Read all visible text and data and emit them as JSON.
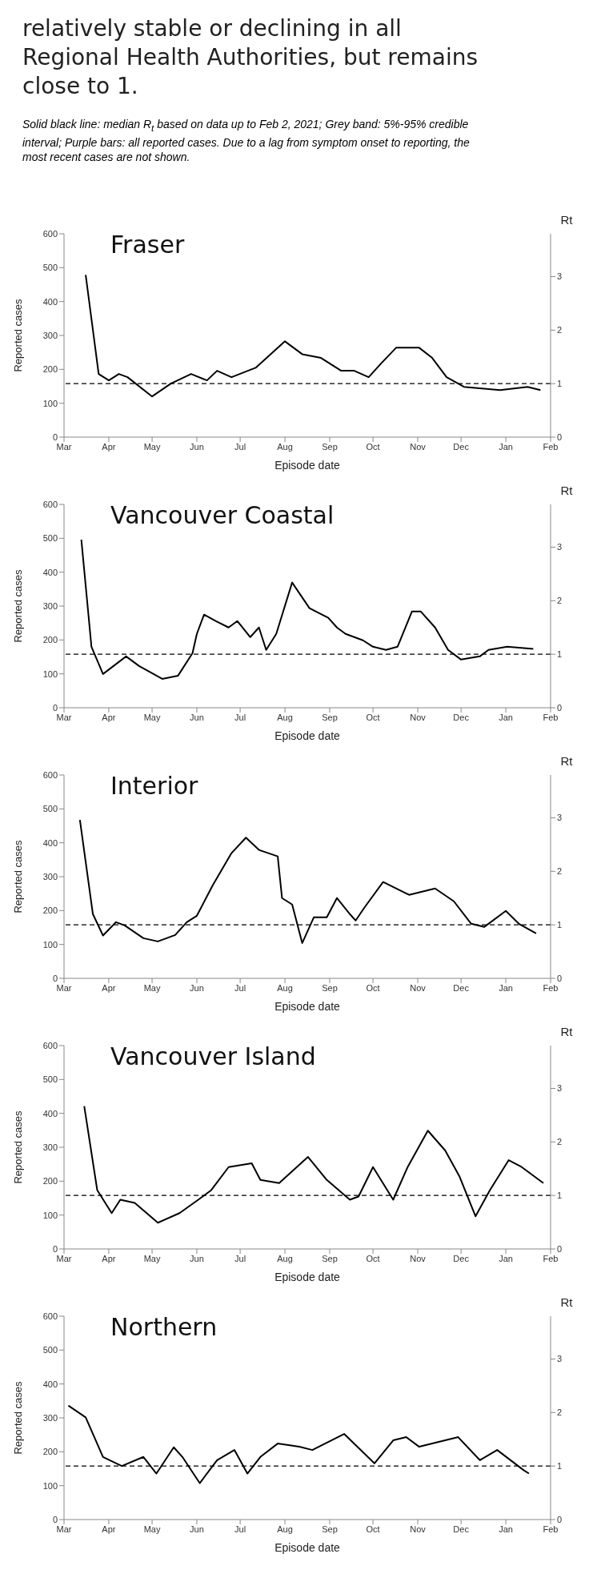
{
  "chart_data": [
    {
      "type": "other",
      "title": "relatively stable or declining in all Regional Health Authorities, but remains close to 1.",
      "annotations": [
        "Solid black line: median R$_{t}$ based on data up to Feb 2, 2021; Grey band: 5%-95% credible interval; Purple bars: all reported cases. Due to a lag from symptom onset to reporting, the most recent cases are not shown."
      ]
    },
    {
      "type": "line",
      "title": "Fraser",
      "xlabel": "Episode date",
      "ylabel": "Reported cases",
      "y2label": "Rt",
      "marker": "none",
      "line_style": "solid",
      "legend": false,
      "grid": false,
      "x": [
        "2020-03-16",
        "2020-03-25",
        "2020-04-01",
        "2020-04-08",
        "2020-04-14",
        "2020-05-01",
        "2020-05-14",
        "2020-05-28",
        "2020-06-08",
        "2020-06-15",
        "2020-06-25",
        "2020-07-12",
        "2020-08-01",
        "2020-08-13",
        "2020-08-26",
        "2020-09-09",
        "2020-09-18",
        "2020-09-28",
        "2020-10-06",
        "2020-10-17",
        "2020-11-02",
        "2020-11-11",
        "2020-11-21",
        "2020-12-03",
        "2020-12-28",
        "2021-01-16",
        "2021-01-25"
      ],
      "series": [
        {
          "axis": "y2",
          "color": "#000000",
          "values": [
            3.03,
            1.18,
            1.06,
            1.18,
            1.12,
            0.76,
            1.0,
            1.18,
            1.06,
            1.24,
            1.12,
            1.3,
            1.79,
            1.55,
            1.48,
            1.24,
            1.24,
            1.12,
            1.36,
            1.67,
            1.67,
            1.48,
            1.12,
            0.94,
            0.88,
            0.94,
            0.88
          ]
        }
      ],
      "xlim": [
        "2020-03-01",
        "2021-02-01"
      ],
      "xticks": [
        {
          "value": "2020-03-01",
          "label": "Mar"
        },
        {
          "value": "2020-04-01",
          "label": "Apr"
        },
        {
          "value": "2020-05-01",
          "label": "May"
        },
        {
          "value": "2020-06-01",
          "label": "Jun"
        },
        {
          "value": "2020-07-01",
          "label": "Jul"
        },
        {
          "value": "2020-08-01",
          "label": "Aug"
        },
        {
          "value": "2020-09-01",
          "label": "Sep"
        },
        {
          "value": "2020-10-01",
          "label": "Oct"
        },
        {
          "value": "2020-11-01",
          "label": "Nov"
        },
        {
          "value": "2020-12-01",
          "label": "Dec"
        },
        {
          "value": "2021-01-01",
          "label": "Jan"
        },
        {
          "value": "2021-02-01",
          "label": "Feb"
        }
      ],
      "ylim": [
        0,
        600
      ],
      "yticks": [
        0,
        100,
        200,
        300,
        400,
        500,
        600
      ],
      "y2lim": [
        0,
        3.8
      ],
      "y2ticks": [
        0,
        1,
        2,
        3
      ],
      "ref_lines": [
        {
          "axis": "y2",
          "value": 1,
          "line_style": "dashed",
          "color": "#000000"
        }
      ]
    },
    {
      "type": "line",
      "title": "Vancouver Coastal",
      "xlabel": "Episode date",
      "ylabel": "Reported cases",
      "y2label": "Rt",
      "marker": "none",
      "line_style": "solid",
      "legend": false,
      "grid": false,
      "x": [
        "2020-03-13",
        "2020-03-20",
        "2020-03-28",
        "2020-04-13",
        "2020-04-22",
        "2020-05-08",
        "2020-05-19",
        "2020-05-29",
        "2020-06-01",
        "2020-06-06",
        "2020-06-14",
        "2020-06-23",
        "2020-06-29",
        "2020-07-08",
        "2020-07-14",
        "2020-07-19",
        "2020-07-26",
        "2020-08-06",
        "2020-08-18",
        "2020-08-31",
        "2020-09-06",
        "2020-09-12",
        "2020-09-24",
        "2020-10-01",
        "2020-10-10",
        "2020-10-18",
        "2020-10-28",
        "2020-11-03",
        "2020-11-13",
        "2020-11-22",
        "2020-12-01",
        "2020-12-14",
        "2020-12-20",
        "2021-01-02",
        "2021-01-20"
      ],
      "series": [
        {
          "axis": "y2",
          "color": "#000000",
          "values": [
            3.14,
            1.14,
            0.63,
            0.96,
            0.78,
            0.54,
            0.6,
            1.02,
            1.38,
            1.74,
            1.62,
            1.5,
            1.62,
            1.32,
            1.5,
            1.08,
            1.38,
            2.34,
            1.86,
            1.68,
            1.5,
            1.38,
            1.26,
            1.14,
            1.08,
            1.14,
            1.8,
            1.8,
            1.5,
            1.08,
            0.9,
            0.96,
            1.08,
            1.14,
            1.1
          ]
        }
      ],
      "xlim": [
        "2020-03-01",
        "2021-02-01"
      ],
      "xticks": [
        {
          "value": "2020-03-01",
          "label": "Mar"
        },
        {
          "value": "2020-04-01",
          "label": "Apr"
        },
        {
          "value": "2020-05-01",
          "label": "May"
        },
        {
          "value": "2020-06-01",
          "label": "Jun"
        },
        {
          "value": "2020-07-01",
          "label": "Jul"
        },
        {
          "value": "2020-08-01",
          "label": "Aug"
        },
        {
          "value": "2020-09-01",
          "label": "Sep"
        },
        {
          "value": "2020-10-01",
          "label": "Oct"
        },
        {
          "value": "2020-11-01",
          "label": "Nov"
        },
        {
          "value": "2020-12-01",
          "label": "Dec"
        },
        {
          "value": "2021-01-01",
          "label": "Jan"
        },
        {
          "value": "2021-02-01",
          "label": "Feb"
        }
      ],
      "ylim": [
        0,
        600
      ],
      "yticks": [
        0,
        100,
        200,
        300,
        400,
        500,
        600
      ],
      "y2lim": [
        0,
        3.8
      ],
      "y2ticks": [
        0,
        1,
        2,
        3
      ],
      "ref_lines": [
        {
          "axis": "y2",
          "value": 1,
          "line_style": "dashed",
          "color": "#000000"
        }
      ]
    },
    {
      "type": "line",
      "title": "Interior",
      "xlabel": "Episode date",
      "ylabel": "Reported cases",
      "y2label": "Rt",
      "marker": "none",
      "line_style": "solid",
      "legend": false,
      "grid": false,
      "x": [
        "2020-03-12",
        "2020-03-21",
        "2020-03-28",
        "2020-04-06",
        "2020-04-12",
        "2020-04-25",
        "2020-05-05",
        "2020-05-17",
        "2020-05-25",
        "2020-06-01",
        "2020-06-12",
        "2020-06-25",
        "2020-07-05",
        "2020-07-14",
        "2020-07-27",
        "2020-07-30",
        "2020-08-06",
        "2020-08-13",
        "2020-08-21",
        "2020-08-30",
        "2020-09-06",
        "2020-09-15",
        "2020-09-19",
        "2020-09-25",
        "2020-10-08",
        "2020-10-26",
        "2020-11-13",
        "2020-11-26",
        "2020-12-08",
        "2020-12-17",
        "2021-01-01",
        "2021-01-10",
        "2021-01-22"
      ],
      "series": [
        {
          "axis": "y2",
          "color": "#000000",
          "values": [
            2.96,
            1.2,
            0.8,
            1.05,
            0.99,
            0.75,
            0.69,
            0.81,
            1.05,
            1.17,
            1.74,
            2.34,
            2.63,
            2.4,
            2.28,
            1.5,
            1.38,
            0.66,
            1.14,
            1.14,
            1.5,
            1.2,
            1.08,
            1.32,
            1.8,
            1.56,
            1.68,
            1.44,
            1.02,
            0.96,
            1.26,
            1.02,
            0.84
          ]
        }
      ],
      "xlim": [
        "2020-03-01",
        "2021-02-01"
      ],
      "xticks": [
        {
          "value": "2020-03-01",
          "label": "Mar"
        },
        {
          "value": "2020-04-01",
          "label": "Apr"
        },
        {
          "value": "2020-05-01",
          "label": "May"
        },
        {
          "value": "2020-06-01",
          "label": "Jun"
        },
        {
          "value": "2020-07-01",
          "label": "Jul"
        },
        {
          "value": "2020-08-01",
          "label": "Aug"
        },
        {
          "value": "2020-09-01",
          "label": "Sep"
        },
        {
          "value": "2020-10-01",
          "label": "Oct"
        },
        {
          "value": "2020-11-01",
          "label": "Nov"
        },
        {
          "value": "2020-12-01",
          "label": "Dec"
        },
        {
          "value": "2021-01-01",
          "label": "Jan"
        },
        {
          "value": "2021-02-01",
          "label": "Feb"
        }
      ],
      "ylim": [
        0,
        600
      ],
      "yticks": [
        0,
        100,
        200,
        300,
        400,
        500,
        600
      ],
      "y2lim": [
        0,
        3.8
      ],
      "y2ticks": [
        0,
        1,
        2,
        3
      ],
      "ref_lines": [
        {
          "axis": "y2",
          "value": 1,
          "line_style": "dashed",
          "color": "#000000"
        }
      ]
    },
    {
      "type": "line",
      "title": "Vancouver Island",
      "xlabel": "Episode date",
      "ylabel": "Reported cases",
      "y2label": "Rt",
      "marker": "none",
      "line_style": "solid",
      "legend": false,
      "grid": false,
      "x": [
        "2020-03-15",
        "2020-03-24",
        "2020-04-03",
        "2020-04-09",
        "2020-04-19",
        "2020-05-05",
        "2020-05-20",
        "2020-06-02",
        "2020-06-11",
        "2020-06-23",
        "2020-07-09",
        "2020-07-15",
        "2020-07-28",
        "2020-08-17",
        "2020-08-30",
        "2020-09-15",
        "2020-09-21",
        "2020-10-01",
        "2020-10-15",
        "2020-10-25",
        "2020-11-08",
        "2020-11-20",
        "2020-11-30",
        "2020-12-11",
        "2020-12-21",
        "2021-01-03",
        "2021-01-12",
        "2021-01-27"
      ],
      "series": [
        {
          "axis": "y2",
          "color": "#000000",
          "values": [
            2.67,
            1.1,
            0.67,
            0.92,
            0.86,
            0.49,
            0.67,
            0.92,
            1.1,
            1.53,
            1.6,
            1.29,
            1.23,
            1.72,
            1.29,
            0.92,
            0.98,
            1.53,
            0.92,
            1.53,
            2.21,
            1.84,
            1.35,
            0.61,
            1.1,
            1.66,
            1.53,
            1.23
          ]
        }
      ],
      "xlim": [
        "2020-03-01",
        "2021-02-01"
      ],
      "xticks": [
        {
          "value": "2020-03-01",
          "label": "Mar"
        },
        {
          "value": "2020-04-01",
          "label": "Apr"
        },
        {
          "value": "2020-05-01",
          "label": "May"
        },
        {
          "value": "2020-06-01",
          "label": "Jun"
        },
        {
          "value": "2020-07-01",
          "label": "Jul"
        },
        {
          "value": "2020-08-01",
          "label": "Aug"
        },
        {
          "value": "2020-09-01",
          "label": "Sep"
        },
        {
          "value": "2020-10-01",
          "label": "Oct"
        },
        {
          "value": "2020-11-01",
          "label": "Nov"
        },
        {
          "value": "2020-12-01",
          "label": "Dec"
        },
        {
          "value": "2021-01-01",
          "label": "Jan"
        },
        {
          "value": "2021-02-01",
          "label": "Feb"
        }
      ],
      "ylim": [
        0,
        600
      ],
      "yticks": [
        0,
        100,
        200,
        300,
        400,
        500,
        600
      ],
      "y2lim": [
        0,
        3.8
      ],
      "y2ticks": [
        0,
        1,
        2,
        3
      ],
      "ref_lines": [
        {
          "axis": "y2",
          "value": 1,
          "line_style": "dashed",
          "color": "#000000"
        }
      ]
    },
    {
      "type": "line",
      "title": "Northern",
      "xlabel": "Episode date",
      "ylabel": "Reported cases",
      "y2label": "Rt",
      "marker": "none",
      "line_style": "solid",
      "legend": false,
      "grid": false,
      "x": [
        "2020-03-04",
        "2020-03-16",
        "2020-03-28",
        "2020-04-10",
        "2020-04-25",
        "2020-05-04",
        "2020-05-16",
        "2020-05-22",
        "2020-06-03",
        "2020-06-15",
        "2020-06-27",
        "2020-07-06",
        "2020-07-15",
        "2020-07-27",
        "2020-08-11",
        "2020-08-20",
        "2020-09-11",
        "2020-10-02",
        "2020-10-15",
        "2020-10-24",
        "2020-11-02",
        "2020-11-20",
        "2020-11-29",
        "2020-12-14",
        "2020-12-26",
        "2021-01-13",
        "2021-01-17"
      ],
      "series": [
        {
          "axis": "y2",
          "color": "#000000",
          "values": [
            2.13,
            1.91,
            1.17,
            1.0,
            1.17,
            0.86,
            1.35,
            1.17,
            0.68,
            1.11,
            1.3,
            0.86,
            1.17,
            1.42,
            1.36,
            1.3,
            1.6,
            1.05,
            1.48,
            1.54,
            1.36,
            1.48,
            1.54,
            1.11,
            1.3,
            0.93,
            0.86
          ]
        }
      ],
      "xlim": [
        "2020-03-01",
        "2021-02-01"
      ],
      "xticks": [
        {
          "value": "2020-03-01",
          "label": "Mar"
        },
        {
          "value": "2020-04-01",
          "label": "Apr"
        },
        {
          "value": "2020-05-01",
          "label": "May"
        },
        {
          "value": "2020-06-01",
          "label": "Jun"
        },
        {
          "value": "2020-07-01",
          "label": "Jul"
        },
        {
          "value": "2020-08-01",
          "label": "Aug"
        },
        {
          "value": "2020-09-01",
          "label": "Sep"
        },
        {
          "value": "2020-10-01",
          "label": "Oct"
        },
        {
          "value": "2020-11-01",
          "label": "Nov"
        },
        {
          "value": "2020-12-01",
          "label": "Dec"
        },
        {
          "value": "2021-01-01",
          "label": "Jan"
        },
        {
          "value": "2021-02-01",
          "label": "Feb"
        }
      ],
      "ylim": [
        0,
        600
      ],
      "yticks": [
        0,
        100,
        200,
        300,
        400,
        500,
        600
      ],
      "y2lim": [
        0,
        3.8
      ],
      "y2ticks": [
        0,
        1,
        2,
        3
      ],
      "ref_lines": [
        {
          "axis": "y2",
          "value": 1,
          "line_style": "dashed",
          "color": "#000000"
        }
      ]
    }
  ]
}
